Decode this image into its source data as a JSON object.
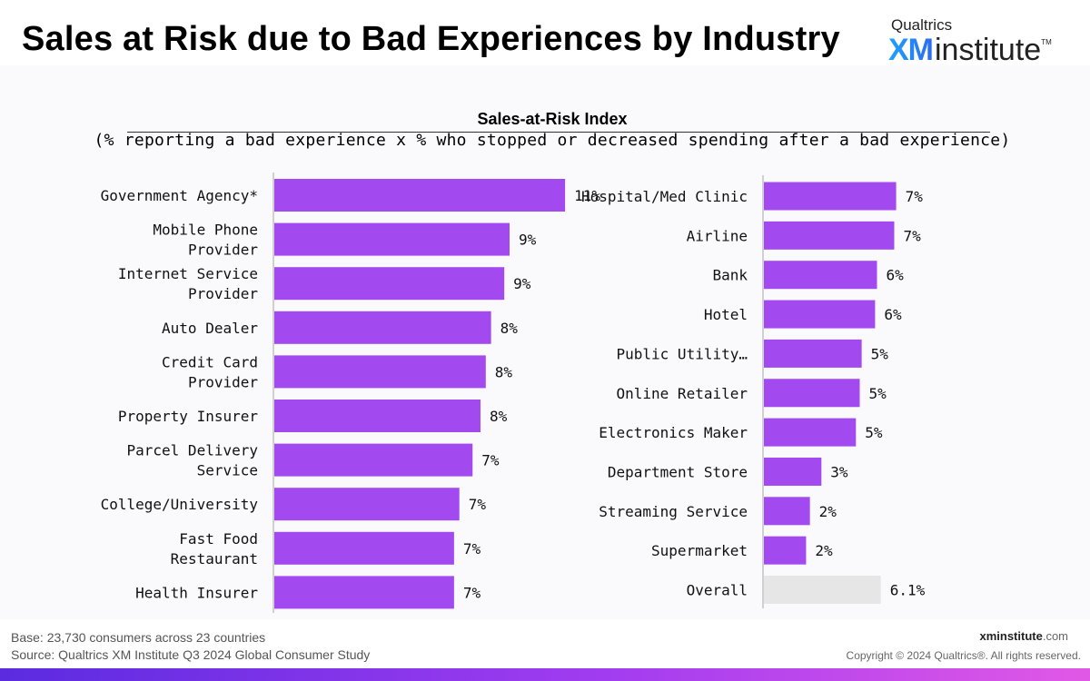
{
  "title": "Sales at Risk due to Bad Experiences by Industry",
  "logo": {
    "company": "Qualtrics",
    "brand_xm": "XM",
    "brand_word": "institute",
    "trademark": "TM"
  },
  "chart_data": {
    "type": "bar",
    "orientation": "horizontal",
    "title": "Sales-at-Risk Index",
    "subtitle": "(% reporting a bad experience x % who stopped or decreased spending after a bad experience)",
    "bar_color": "#a24af0",
    "overall_bar_color": "#e6e6e6",
    "grid": false,
    "panels": [
      {
        "categories": [
          [
            "Government Agency*"
          ],
          [
            "Mobile Phone",
            "Provider"
          ],
          [
            "Internet Service",
            "Provider"
          ],
          [
            "Auto Dealer"
          ],
          [
            "Credit Card",
            "Provider"
          ],
          [
            "Property Insurer"
          ],
          [
            "Parcel Delivery",
            "Service"
          ],
          [
            "College/University"
          ],
          [
            "Fast Food",
            "Restaurant"
          ],
          [
            "Health Insurer"
          ]
        ],
        "values": [
          11,
          9,
          9,
          8,
          8,
          8,
          7,
          7,
          7,
          7
        ],
        "value_estimates": [
          11.0,
          8.9,
          8.7,
          8.2,
          8.0,
          7.8,
          7.5,
          7.0,
          6.8,
          6.8
        ],
        "labels": [
          "11%",
          "9%",
          "9%",
          "8%",
          "8%",
          "8%",
          "7%",
          "7%",
          "7%",
          "7%"
        ]
      },
      {
        "categories": [
          [
            "Hospital/Med Clinic"
          ],
          [
            "Airline"
          ],
          [
            "Bank"
          ],
          [
            "Hotel"
          ],
          [
            "Public Utility…"
          ],
          [
            "Online Retailer"
          ],
          [
            "Electronics Maker"
          ],
          [
            "Department Store"
          ],
          [
            "Streaming Service"
          ],
          [
            "Supermarket"
          ],
          [
            "Overall"
          ]
        ],
        "values": [
          7,
          7,
          6,
          6,
          5,
          5,
          5,
          3,
          2,
          2,
          6.1
        ],
        "value_estimates": [
          6.9,
          6.8,
          5.9,
          5.8,
          5.1,
          5.0,
          4.8,
          3.0,
          2.4,
          2.2,
          6.1
        ],
        "labels": [
          "7%",
          "7%",
          "6%",
          "6%",
          "5%",
          "5%",
          "5%",
          "3%",
          "2%",
          "2%",
          "6.1%"
        ],
        "highlight_last": true
      }
    ]
  },
  "footer": {
    "base": "Base: 23,730 consumers across 23 countries",
    "source": "Source: Qualtrics XM Institute Q3 2024 Global Consumer Study",
    "site_bold": "xminstitute",
    "site_suffix": ".com",
    "copyright": "Copyright © 2024 Qualtrics®. All rights reserved."
  }
}
